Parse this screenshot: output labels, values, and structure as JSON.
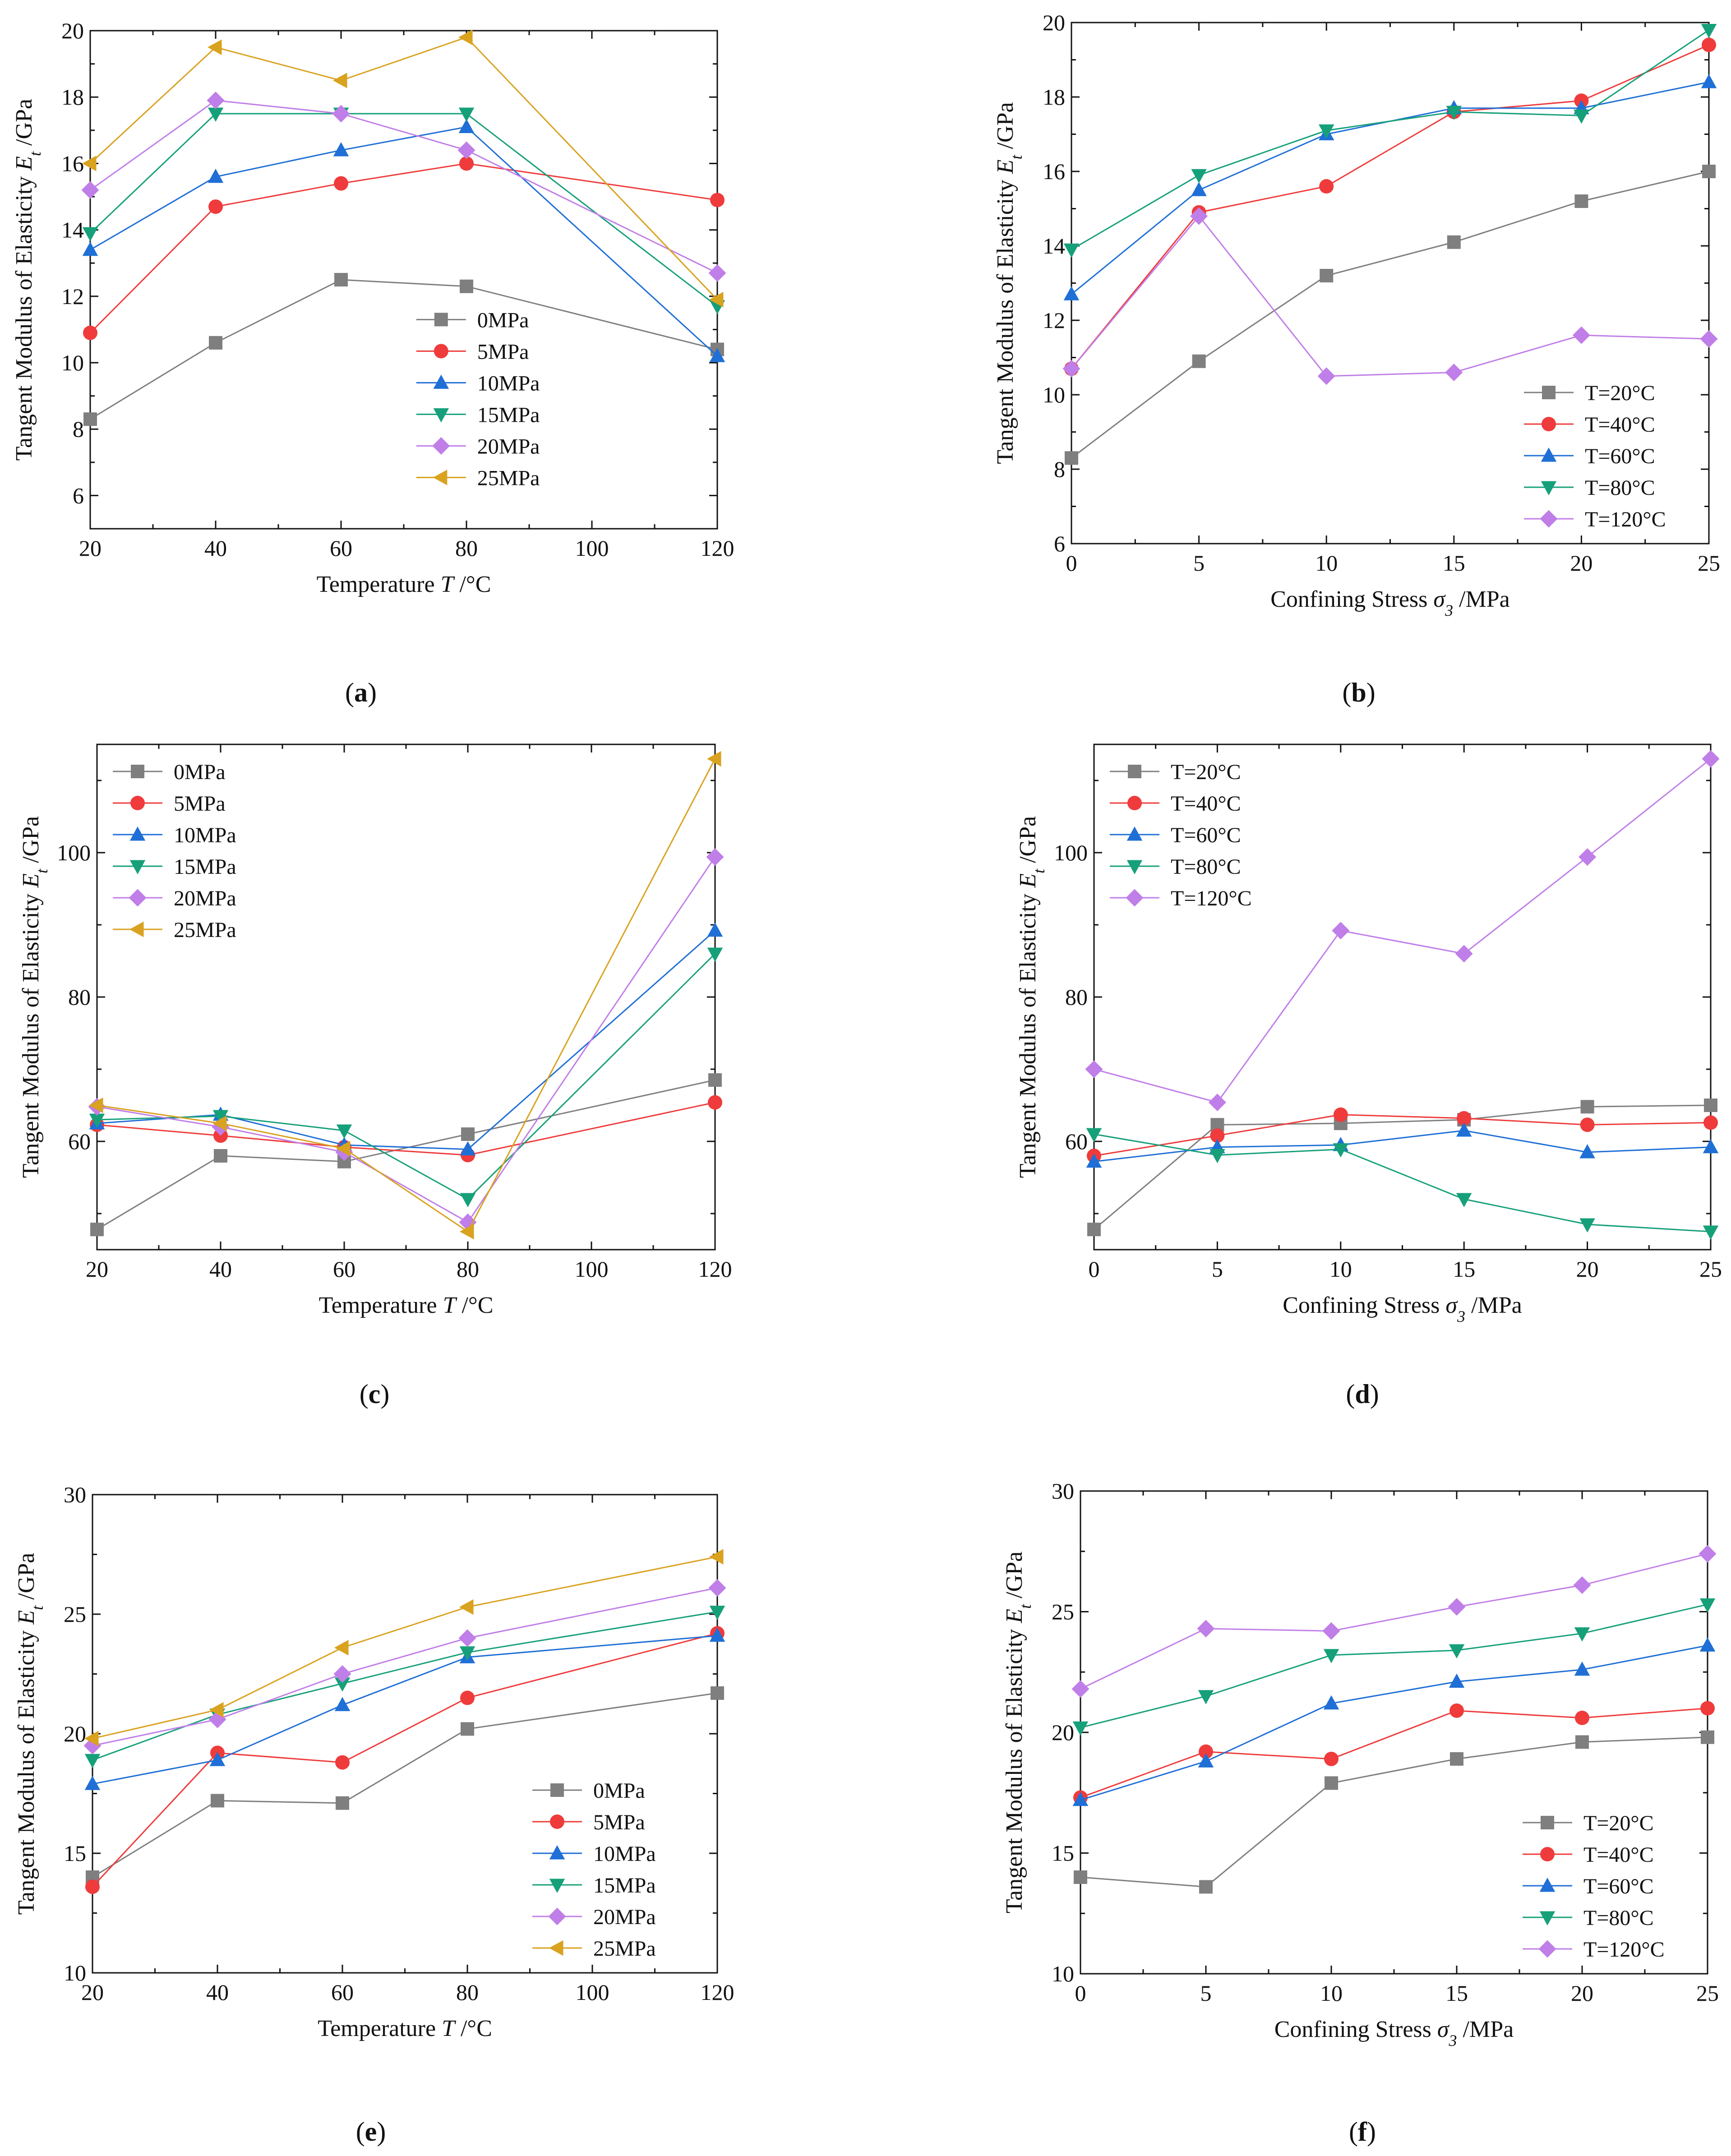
{
  "colors": {
    "0MPa": "#7f7f7f",
    "5MPa": "#ef3b3b",
    "10MPa": "#1f6fd6",
    "15MPa": "#16a07a",
    "20MPa": "#c07ee8",
    "25MPa": "#d9a21f",
    "T=20°C": "#7f7f7f",
    "T=40°C": "#ef3b3b",
    "T=60°C": "#1f6fd6",
    "T=80°C": "#16a07a",
    "T=120°C": "#c07ee8"
  },
  "markers": {
    "0MPa": "square",
    "5MPa": "circle",
    "10MPa": "triangle-up",
    "15MPa": "triangle-down",
    "20MPa": "diamond",
    "25MPa": "triangle-left",
    "T=20°C": "square",
    "T=40°C": "circle",
    "T=60°C": "triangle-up",
    "T=80°C": "triangle-down",
    "T=120°C": "diamond"
  },
  "chart_data": [
    {
      "id": "a",
      "label": "(a)",
      "type": "line",
      "xlabel": "Temperature T /°C",
      "ylabel": "Tangent Modulus of Elasticity Et /GPa",
      "xlim": [
        20,
        120
      ],
      "ylim": [
        5,
        20
      ],
      "xticks": [
        20,
        40,
        60,
        80,
        100,
        120
      ],
      "yticks": [
        6,
        8,
        10,
        12,
        14,
        16,
        18,
        20
      ],
      "x": [
        20,
        40,
        60,
        80,
        120
      ],
      "legend_position": "center",
      "series": [
        {
          "name": "0MPa",
          "values": [
            8.3,
            10.6,
            12.5,
            12.3,
            10.4
          ]
        },
        {
          "name": "5MPa",
          "values": [
            10.9,
            14.7,
            15.4,
            16.0,
            14.9
          ]
        },
        {
          "name": "10MPa",
          "values": [
            13.4,
            15.6,
            16.4,
            17.1,
            10.2
          ]
        },
        {
          "name": "15MPa",
          "values": [
            13.9,
            17.5,
            17.5,
            17.5,
            11.7
          ]
        },
        {
          "name": "20MPa",
          "values": [
            15.2,
            17.9,
            17.5,
            16.4,
            12.7
          ]
        },
        {
          "name": "25MPa",
          "values": [
            16.0,
            19.5,
            18.5,
            19.8,
            11.9
          ]
        }
      ]
    },
    {
      "id": "b",
      "label": "(b)",
      "type": "line",
      "xlabel": "Confining Stress σ3 /MPa",
      "ylabel": "Tangent Modulus of Elasticity Et /GPa",
      "xlim": [
        0,
        25
      ],
      "ylim": [
        6,
        20
      ],
      "xticks": [
        0,
        5,
        10,
        15,
        20,
        25
      ],
      "yticks": [
        6,
        8,
        10,
        12,
        14,
        16,
        18,
        20
      ],
      "x": [
        0,
        5,
        10,
        15,
        20,
        25
      ],
      "legend_position": "bottom-right",
      "series": [
        {
          "name": "T=20°C",
          "values": [
            8.3,
            10.9,
            13.2,
            14.1,
            15.2,
            16.0
          ]
        },
        {
          "name": "T=40°C",
          "values": [
            10.7,
            14.9,
            15.6,
            17.6,
            17.9,
            19.4
          ]
        },
        {
          "name": "T=60°C",
          "values": [
            12.7,
            15.5,
            17.0,
            17.7,
            17.7,
            18.4
          ]
        },
        {
          "name": "T=80°C",
          "values": [
            13.9,
            15.9,
            17.1,
            17.6,
            17.5,
            19.8
          ]
        },
        {
          "name": "T=120°C",
          "values": [
            10.7,
            14.8,
            10.5,
            10.6,
            11.6,
            11.5
          ]
        }
      ]
    },
    {
      "id": "c",
      "label": "(c)",
      "type": "line",
      "xlabel": "Temperature T /°C",
      "ylabel": "Tangent Modulus of Elasticity Et /GPa",
      "xlim": [
        20,
        120
      ],
      "ylim": [
        45,
        115
      ],
      "xticks": [
        20,
        40,
        60,
        80,
        100,
        120
      ],
      "yticks": [
        60,
        80,
        100
      ],
      "x": [
        20,
        40,
        60,
        80,
        120
      ],
      "legend_position": "top-left",
      "series": [
        {
          "name": "0MPa",
          "values": [
            47.8,
            58.0,
            57.2,
            61.0,
            68.5
          ]
        },
        {
          "name": "5MPa",
          "values": [
            62.3,
            60.8,
            59.2,
            58.1,
            65.4
          ]
        },
        {
          "name": "10MPa",
          "values": [
            62.5,
            63.7,
            59.5,
            58.9,
            89.2
          ]
        },
        {
          "name": "15MPa",
          "values": [
            63.0,
            63.5,
            61.5,
            52.0,
            86.0
          ]
        },
        {
          "name": "20MPa",
          "values": [
            64.8,
            62.0,
            58.5,
            48.8,
            99.4
          ]
        },
        {
          "name": "25MPa",
          "values": [
            65.0,
            62.5,
            59.0,
            47.5,
            113.0
          ]
        }
      ]
    },
    {
      "id": "d",
      "label": "(d)",
      "type": "line",
      "xlabel": "Confining Stress σ3 /MPa",
      "ylabel": "Tangent Modulus of Elasticity Et /GPa",
      "xlim": [
        0,
        25
      ],
      "ylim": [
        45,
        115
      ],
      "xticks": [
        0,
        5,
        10,
        15,
        20,
        25
      ],
      "yticks": [
        60,
        80,
        100
      ],
      "x": [
        0,
        5,
        10,
        15,
        20,
        25
      ],
      "legend_position": "top-left",
      "series": [
        {
          "name": "T=20°C",
          "values": [
            47.8,
            62.3,
            62.5,
            63.0,
            64.8,
            65.0
          ]
        },
        {
          "name": "T=40°C",
          "values": [
            58.0,
            60.8,
            63.7,
            63.2,
            62.3,
            62.6
          ]
        },
        {
          "name": "T=60°C",
          "values": [
            57.2,
            59.2,
            59.5,
            61.5,
            58.5,
            59.2
          ]
        },
        {
          "name": "T=80°C",
          "values": [
            61.0,
            58.1,
            58.9,
            52.0,
            48.5,
            47.5
          ]
        },
        {
          "name": "T=120°C",
          "values": [
            70.0,
            65.4,
            89.2,
            86.0,
            99.4,
            113.0
          ]
        }
      ]
    },
    {
      "id": "e",
      "label": "(e)",
      "type": "line",
      "xlabel": "Temperature T /°C",
      "ylabel": "Tangent Modulus of Elasticity Et /GPa",
      "xlim": [
        20,
        120
      ],
      "ylim": [
        10,
        30
      ],
      "xticks": [
        20,
        40,
        60,
        80,
        100,
        120
      ],
      "yticks": [
        10,
        15,
        20,
        25,
        30
      ],
      "x": [
        20,
        40,
        60,
        80,
        120
      ],
      "legend_position": "bottom-right",
      "series": [
        {
          "name": "0MPa",
          "values": [
            14.0,
            17.2,
            17.1,
            20.2,
            21.7
          ]
        },
        {
          "name": "5MPa",
          "values": [
            13.6,
            19.2,
            18.8,
            21.5,
            24.2
          ]
        },
        {
          "name": "10MPa",
          "values": [
            17.9,
            18.9,
            21.2,
            23.2,
            24.1
          ]
        },
        {
          "name": "15MPa",
          "values": [
            18.9,
            20.8,
            22.1,
            23.4,
            25.1
          ]
        },
        {
          "name": "20MPa",
          "values": [
            19.5,
            20.6,
            22.5,
            24.0,
            26.1
          ]
        },
        {
          "name": "25MPa",
          "values": [
            19.8,
            21.0,
            23.6,
            25.3,
            27.4
          ]
        }
      ]
    },
    {
      "id": "f",
      "label": "(f)",
      "type": "line",
      "xlabel": "Confining Stress σ3 /MPa",
      "ylabel": "Tangent Modulus of Elasticity Et /GPa",
      "xlim": [
        0,
        25
      ],
      "ylim": [
        10,
        30
      ],
      "xticks": [
        0,
        5,
        10,
        15,
        20,
        25
      ],
      "yticks": [
        10,
        15,
        20,
        25,
        30
      ],
      "x": [
        0,
        5,
        10,
        15,
        20,
        25
      ],
      "legend_position": "bottom-right",
      "series": [
        {
          "name": "T=20°C",
          "values": [
            14.0,
            13.6,
            17.9,
            18.9,
            19.6,
            19.8
          ]
        },
        {
          "name": "T=40°C",
          "values": [
            17.3,
            19.2,
            18.9,
            20.9,
            20.6,
            21.0
          ]
        },
        {
          "name": "T=60°C",
          "values": [
            17.2,
            18.8,
            21.2,
            22.1,
            22.6,
            23.6
          ]
        },
        {
          "name": "T=80°C",
          "values": [
            20.2,
            21.5,
            23.2,
            23.4,
            24.1,
            25.3
          ]
        },
        {
          "name": "T=120°C",
          "values": [
            21.8,
            24.3,
            24.2,
            25.2,
            26.1,
            27.4
          ]
        }
      ]
    }
  ]
}
